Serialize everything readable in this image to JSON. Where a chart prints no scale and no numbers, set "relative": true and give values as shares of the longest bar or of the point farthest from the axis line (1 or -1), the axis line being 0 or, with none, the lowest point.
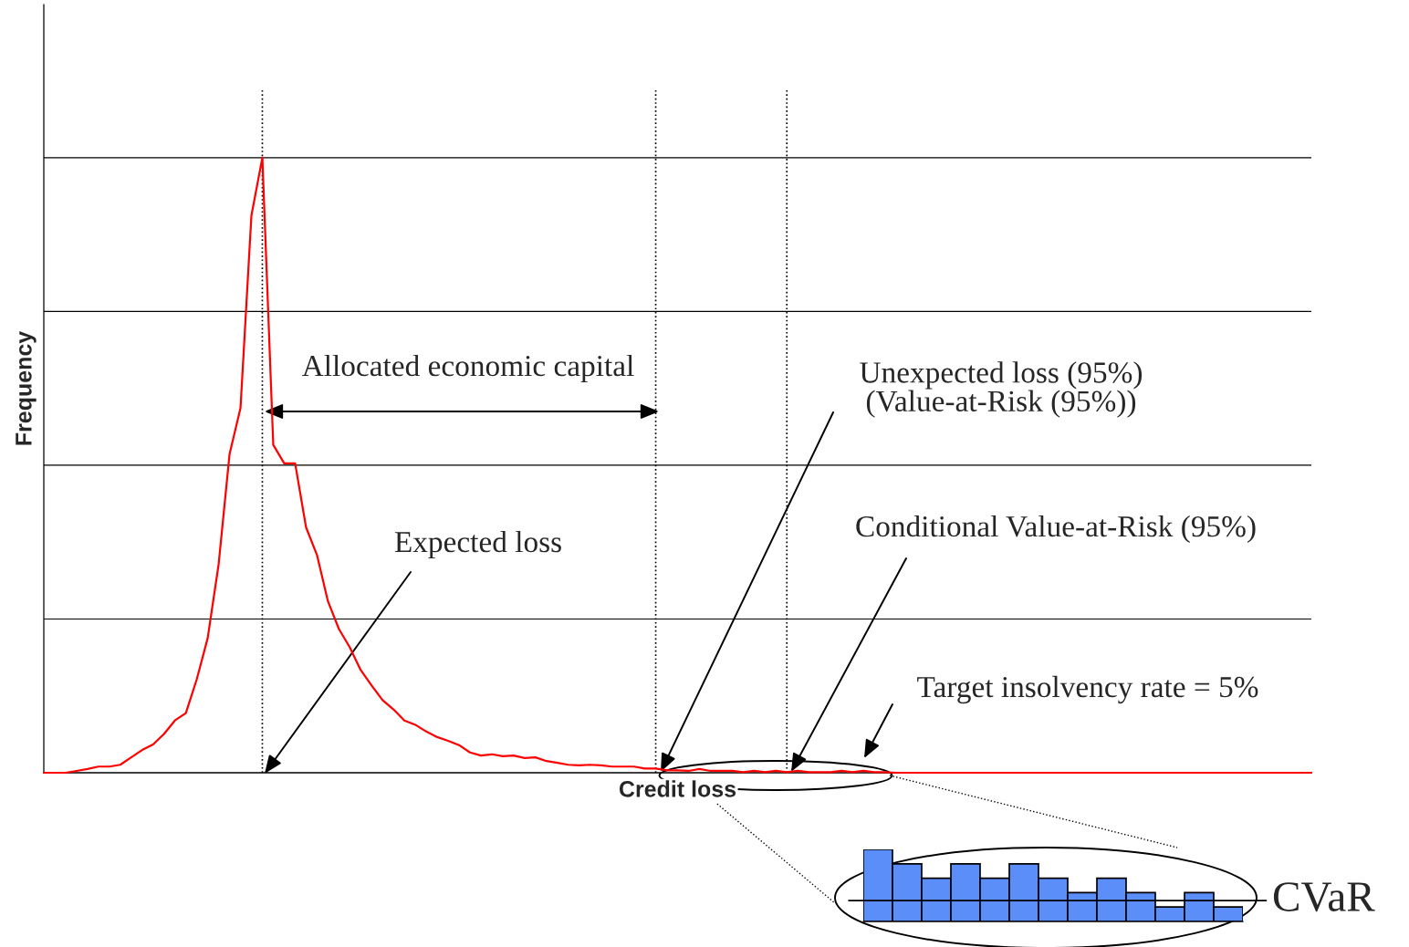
{
  "chart_data": [
    {
      "type": "line",
      "relative": true,
      "xlabel": "Credit loss",
      "ylabel": "Frequency",
      "grid": true,
      "categories": [
        null,
        null,
        null,
        null,
        null,
        null,
        null,
        null,
        null,
        null,
        null,
        null,
        null,
        null,
        null,
        null,
        null,
        null,
        null,
        null,
        null,
        null,
        null,
        null,
        null,
        null,
        null,
        null,
        null,
        null,
        null,
        null,
        null,
        null,
        null,
        null,
        null,
        null,
        null,
        null,
        null,
        null,
        null,
        null,
        null,
        null,
        null,
        null,
        null,
        null,
        null,
        null,
        null,
        null,
        null,
        null,
        null,
        null,
        null,
        null,
        null,
        null,
        null,
        null,
        null,
        null,
        null,
        null,
        null,
        null,
        null,
        null,
        null,
        null,
        null,
        null,
        null,
        null,
        null,
        null,
        null,
        null,
        null,
        null,
        null,
        null,
        null,
        null,
        null,
        null,
        null,
        null,
        null,
        null,
        null,
        null,
        null,
        null,
        null,
        null,
        null,
        null,
        null,
        null,
        null,
        null,
        null,
        null,
        null,
        null,
        null,
        null,
        null,
        null,
        null,
        null,
        null
      ],
      "series": [
        {
          "color": "#ff0000",
          "values": [
            0,
            0,
            0,
            0.003,
            0.006,
            0.01,
            0.01,
            0.013,
            0.025,
            0.037,
            0.046,
            0.063,
            0.085,
            0.097,
            0.152,
            0.219,
            0.339,
            0.518,
            0.593,
            0.906,
            1.0,
            0.533,
            0.503,
            0.503,
            0.399,
            0.354,
            0.279,
            0.234,
            0.204,
            0.167,
            0.142,
            0.118,
            0.103,
            0.085,
            0.078,
            0.067,
            0.058,
            0.052,
            0.045,
            0.033,
            0.028,
            0.03,
            0.027,
            0.028,
            0.024,
            0.025,
            0.019,
            0.016,
            0.013,
            0.012,
            0.013,
            0.012,
            0.01,
            0.01,
            0.01,
            0.007,
            0.007,
            0.004,
            0.004,
            0.003,
            0.006,
            0.003,
            0.003,
            0.003,
            0.001,
            0.003,
            0.001,
            0.003,
            0.001,
            0.003,
            0.001,
            0.001,
            0.001,
            0.003,
            0.001,
            0.003,
            0.001,
            0.001,
            0,
            0,
            0,
            0,
            0,
            0,
            0,
            0,
            0,
            0,
            0,
            0,
            0,
            0,
            0,
            0,
            0,
            0,
            0,
            0,
            0,
            0,
            0,
            0,
            0,
            0,
            0,
            0,
            0,
            0,
            0,
            0,
            0,
            0,
            0,
            0,
            0,
            0,
            0
          ]
        }
      ],
      "annotations": [
        "Allocated economic capital",
        "Expected loss",
        "Unexpected loss (95%)\n(Value-at-Risk (95%))",
        "Conditional Value-at-Risk (95%)",
        "Target insolvency rate = 5%"
      ]
    },
    {
      "type": "bar",
      "relative": true,
      "categories": [
        null,
        null,
        null,
        null,
        null,
        null,
        null,
        null,
        null,
        null,
        null,
        null,
        null
      ],
      "values": [
        1,
        0.8,
        0.6,
        0.8,
        0.6,
        0.8,
        0.6,
        0.4,
        0.6,
        0.4,
        0.2,
        0.4,
        0.2
      ],
      "color": "#5b8ef9",
      "ref_lines": [
        {
          "axis": "y",
          "value": 0.29,
          "label": "CVaR",
          "color": "#000000"
        }
      ]
    }
  ]
}
